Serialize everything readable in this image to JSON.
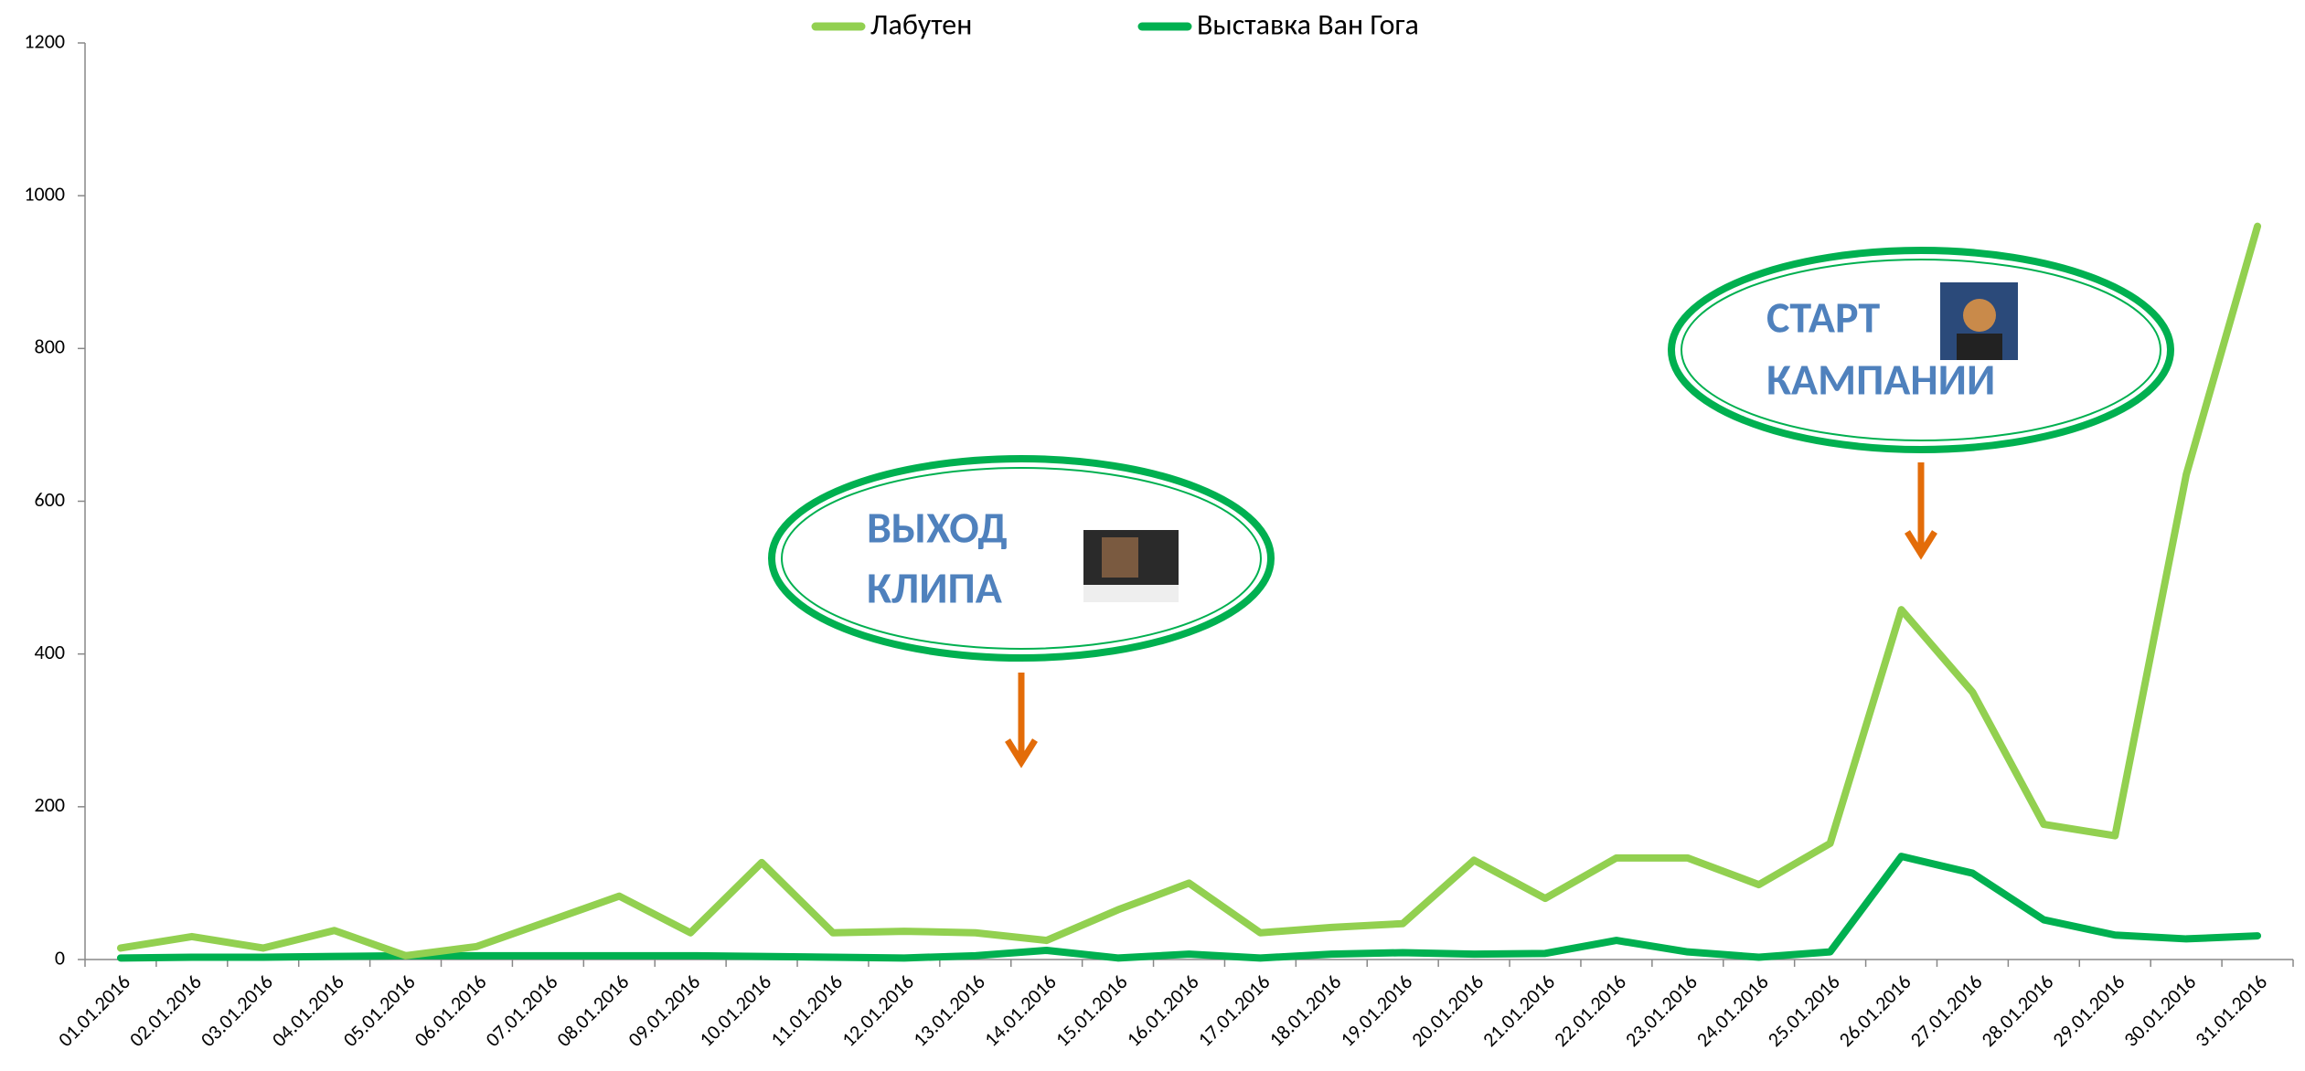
{
  "chart_data": {
    "type": "line",
    "categories": [
      "01.01.2016",
      "02.01.2016",
      "03.01.2016",
      "04.01.2016",
      "05.01.2016",
      "06.01.2016",
      "07.01.2016",
      "08.01.2016",
      "09.01.2016",
      "10.01.2016",
      "11.01.2016",
      "12.01.2016",
      "13.01.2016",
      "14.01.2016",
      "15.01.2016",
      "16.01.2016",
      "17.01.2016",
      "18.01.2016",
      "19.01.2016",
      "20.01.2016",
      "21.01.2016",
      "22.01.2016",
      "23.01.2016",
      "24.01.2016",
      "25.01.2016",
      "26.01.2016",
      "27.01.2016",
      "28.01.2016",
      "29.01.2016",
      "30.01.2016",
      "31.01.2016"
    ],
    "series": [
      {
        "name": "Лабутен",
        "color": "#92d050",
        "values": [
          15,
          30,
          15,
          38,
          5,
          17,
          50,
          83,
          35,
          127,
          35,
          37,
          35,
          25,
          65,
          100,
          35,
          42,
          47,
          130,
          80,
          133,
          133,
          98,
          152,
          458,
          350,
          177,
          162,
          635,
          960
        ]
      },
      {
        "name": "Выставка Ван Гога",
        "color": "#00b050",
        "values": [
          2,
          3,
          3,
          4,
          5,
          5,
          5,
          5,
          5,
          4,
          3,
          2,
          5,
          12,
          2,
          7,
          2,
          7,
          9,
          7,
          8,
          25,
          10,
          3,
          10,
          135,
          113,
          52,
          32,
          27,
          31
        ]
      }
    ],
    "ylim": [
      0,
      1200
    ],
    "yticks": [
      0,
      200,
      400,
      600,
      800,
      1000,
      1200
    ],
    "grid": false,
    "annotations": [
      [
        "ВЫХОД",
        "КЛИПА"
      ],
      [
        "СТАРТ",
        "КАМПАНИИ"
      ]
    ]
  }
}
